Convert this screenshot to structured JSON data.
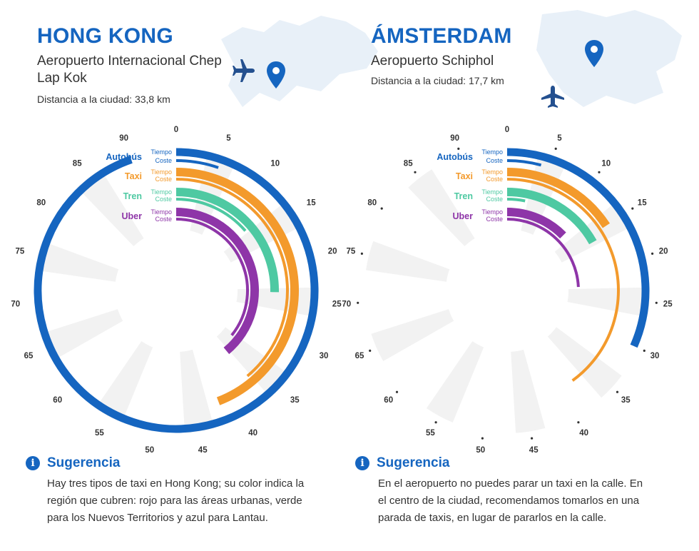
{
  "colors": {
    "bus": "#1565c0",
    "taxi": "#f39a2c",
    "train": "#4ec9a2",
    "uber": "#8e35a8",
    "spoke": "#f2f2f2",
    "map": "#e8f0f8"
  },
  "panels": [
    {
      "city": "HONG KONG",
      "airport": "Aeropuerto Internacional Chep Lap Kok",
      "distance": "Distancia a la ciudad: 33,8 km",
      "tip_title": "Sugerencia",
      "tip_text": "Hay tres tipos de taxi en Hong Kong; su color indica la región que cubren: rojo para las áreas urbanas, verde para los Nuevos Territorios y azul para Lantau."
    },
    {
      "city": "ÁMSTERDAM",
      "airport": "Aeropuerto Schiphol",
      "distance": "Distancia a la ciudad: 17,7 km",
      "tip_title": "Sugerencia",
      "tip_text": "En el aeropuerto no puedes parar un taxi en la calle. En el centro de la ciudad, recomendamos tomarlos en una parada de taxis, en lugar de pararlos en la calle."
    }
  ],
  "chart_data": [
    {
      "type": "radial-bar",
      "title": "HONG KONG",
      "scale": [
        0,
        95
      ],
      "ticks": [
        0,
        5,
        10,
        15,
        20,
        25,
        30,
        35,
        40,
        45,
        50,
        55,
        60,
        65,
        70,
        75,
        80,
        85,
        90
      ],
      "modes": [
        "Autobús",
        "Taxi",
        "Tren",
        "Uber"
      ],
      "metrics": [
        "Tiempo",
        "Coste"
      ],
      "series": [
        {
          "mode": "Autobús",
          "metric": "Tiempo",
          "value": 90
        },
        {
          "mode": "Autobús",
          "metric": "Coste",
          "value": 5
        },
        {
          "mode": "Taxi",
          "metric": "Tiempo",
          "value": 42
        },
        {
          "mode": "Taxi",
          "metric": "Coste",
          "value": 37
        },
        {
          "mode": "Tren",
          "metric": "Tiempo",
          "value": 24
        },
        {
          "mode": "Tren",
          "metric": "Coste",
          "value": 13
        },
        {
          "mode": "Uber",
          "metric": "Tiempo",
          "value": 37
        },
        {
          "mode": "Uber",
          "metric": "Coste",
          "value": 34
        }
      ]
    },
    {
      "type": "radial-bar",
      "title": "ÁMSTERDAM",
      "scale": [
        0,
        95
      ],
      "ticks": [
        0,
        5,
        10,
        15,
        20,
        25,
        30,
        35,
        40,
        45,
        50,
        55,
        60,
        65,
        70,
        75,
        80,
        85,
        90
      ],
      "modes": [
        "Autobús",
        "Taxi",
        "Tren",
        "Uber"
      ],
      "metrics": [
        "Tiempo",
        "Coste"
      ],
      "series": [
        {
          "mode": "Autobús",
          "metric": "Tiempo",
          "value": 30
        },
        {
          "mode": "Autobús",
          "metric": "Coste",
          "value": 4
        },
        {
          "mode": "Taxi",
          "metric": "Tiempo",
          "value": 15
        },
        {
          "mode": "Taxi",
          "metric": "Coste",
          "value": 38
        },
        {
          "mode": "Tren",
          "metric": "Tiempo",
          "value": 16
        },
        {
          "mode": "Tren",
          "metric": "Coste",
          "value": 3
        },
        {
          "mode": "Uber",
          "metric": "Tiempo",
          "value": 12
        },
        {
          "mode": "Uber",
          "metric": "Coste",
          "value": 23
        }
      ]
    }
  ]
}
